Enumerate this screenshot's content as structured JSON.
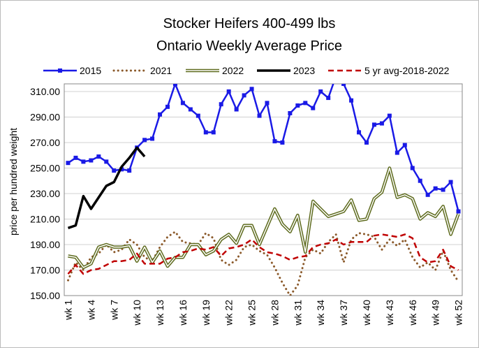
{
  "chart_data": {
    "type": "line",
    "title": "Stocker Heifers 400-499 lbs",
    "subtitle": "Ontario Weekly Average Price",
    "y_label": "price per hundred weight",
    "categories": [
      "wk 1",
      null,
      null,
      "wk 4",
      null,
      null,
      "wk 7",
      null,
      null,
      "wk 10",
      null,
      null,
      "wk 13",
      null,
      null,
      "wk 16",
      null,
      null,
      "wk 19",
      null,
      null,
      "wk 22",
      null,
      null,
      "wk 25",
      null,
      null,
      "wk 28",
      null,
      null,
      "wk 31",
      null,
      null,
      "wk 34",
      null,
      null,
      "wk 37",
      null,
      null,
      "wk 40",
      null,
      null,
      "wk 43",
      null,
      null,
      "wk 46",
      null,
      null,
      "wk 49",
      null,
      null,
      "wk 52"
    ],
    "ylim": [
      150,
      316
    ],
    "yticks": [
      {
        "value": 150,
        "label": "150.00"
      },
      {
        "value": 170,
        "label": "170.00"
      },
      {
        "value": 190,
        "label": "190.00"
      },
      {
        "value": 210,
        "label": "210.00"
      },
      {
        "value": 230,
        "label": "230.00"
      },
      {
        "value": 250,
        "label": "250.00"
      },
      {
        "value": 270,
        "label": "270.00"
      },
      {
        "value": 290,
        "label": "290.00"
      },
      {
        "value": 310,
        "label": "310.00"
      }
    ],
    "grid": true,
    "legend": "top",
    "series": [
      {
        "name": "2015",
        "color": "#1a1ae6",
        "style": "solid-square",
        "values": [
          254,
          258,
          255,
          256,
          259,
          255,
          248,
          249,
          248,
          266,
          272,
          273,
          292,
          298,
          316,
          301,
          296,
          291,
          278,
          278,
          300,
          310,
          296,
          307,
          312,
          291,
          301,
          271,
          270,
          293,
          299,
          301,
          297,
          310,
          305,
          322,
          316,
          303,
          278,
          270,
          284,
          285,
          291,
          262,
          268,
          250,
          240,
          229,
          234,
          233,
          239,
          216
        ]
      },
      {
        "name": "2021",
        "color": "#8b5a2b",
        "style": "dotted",
        "values": [
          162,
          176,
          170,
          180,
          183,
          190,
          184,
          186,
          194,
          190,
          180,
          177,
          188,
          196,
          200,
          192,
          191,
          190,
          199,
          195,
          178,
          174,
          178,
          188,
          190,
          185,
          182,
          172,
          160,
          150,
          158,
          180,
          186,
          183,
          192,
          198,
          176,
          194,
          199,
          198,
          196,
          186,
          194,
          189,
          194,
          180,
          172,
          176,
          170,
          185,
          170,
          161
        ]
      },
      {
        "name": "2022",
        "color": "#5e6b1e",
        "style": "double",
        "values": [
          181,
          180,
          172,
          175,
          188,
          190,
          188,
          188,
          189,
          177,
          188,
          176,
          185,
          173,
          180,
          180,
          190,
          190,
          182,
          185,
          194,
          198,
          191,
          205,
          205,
          190,
          204,
          218,
          206,
          200,
          213,
          184,
          224,
          218,
          212,
          214,
          216,
          225,
          209,
          210,
          226,
          231,
          250,
          227,
          229,
          226,
          210,
          215,
          212,
          220,
          198,
          214
        ]
      },
      {
        "name": "2023",
        "color": "#000000",
        "style": "thick",
        "values": [
          203,
          205,
          228,
          218,
          227,
          236,
          239,
          251,
          258,
          266,
          259,
          null,
          null,
          null,
          null,
          null,
          null,
          null,
          null,
          null,
          null,
          null,
          null,
          null,
          null,
          null,
          null,
          null,
          null,
          null,
          null,
          null,
          null,
          null,
          null,
          null,
          null,
          null,
          null,
          null,
          null,
          null,
          null,
          null,
          null,
          null,
          null,
          null,
          null,
          null,
          null,
          null
        ]
      },
      {
        "name": "5 yr avg-2018-2022",
        "color": "#c00000",
        "style": "dashed",
        "values": [
          167,
          174,
          167,
          170,
          171,
          174,
          177,
          177,
          178,
          183,
          175,
          175,
          175,
          179,
          180,
          184,
          185,
          187,
          186,
          188,
          181,
          187,
          188,
          190,
          194,
          188,
          184,
          183,
          181,
          178,
          180,
          181,
          188,
          190,
          191,
          194,
          190,
          192,
          192,
          192,
          197,
          198,
          197,
          196,
          198,
          195,
          180,
          176,
          177,
          186,
          173,
          170
        ]
      }
    ]
  }
}
